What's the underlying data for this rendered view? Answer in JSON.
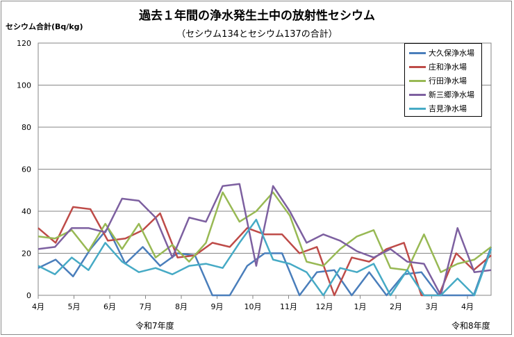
{
  "chart_data": {
    "type": "line",
    "title": "過去１年間の浄水発生土中の放射性セシウム",
    "subtitle": "（セシウム134とセシウム137の合計）",
    "ylabel": "セシウム合計(Bq/kg)",
    "ylim": [
      0,
      120
    ],
    "yticks": [
      0,
      20,
      40,
      60,
      80,
      100,
      120
    ],
    "x_tick_labels": [
      "4月",
      "5月",
      "6月",
      "7月",
      "8月",
      "9月",
      "10月",
      "11月",
      "12月",
      "1月",
      "2月",
      "3月",
      "4月"
    ],
    "x_group_labels": [
      "令和7年度",
      "令和8年度"
    ],
    "grid": true,
    "legend_position": "top-right",
    "series": [
      {
        "name": "大久保浄水場",
        "color": "#4a7ebb",
        "values": [
          13,
          17,
          9,
          22,
          32,
          15,
          23,
          14,
          20,
          19,
          0,
          0,
          14,
          20,
          20,
          0,
          11,
          12,
          0,
          11,
          0,
          10,
          11,
          0,
          0,
          0,
          23
        ]
      },
      {
        "name": "庄和浄水場",
        "color": "#be4b48",
        "values": [
          32,
          25,
          42,
          41,
          26,
          27,
          31,
          39,
          18,
          19,
          25,
          23,
          32,
          29,
          29,
          20,
          23,
          0,
          18,
          16,
          22,
          25,
          0,
          0,
          20,
          12,
          19
        ]
      },
      {
        "name": "行田浄水場",
        "color": "#98b954",
        "values": [
          28,
          27,
          31,
          21,
          34,
          22,
          34,
          18,
          24,
          16,
          25,
          49,
          35,
          40,
          49,
          38,
          16,
          14,
          22,
          28,
          31,
          13,
          12,
          29,
          11,
          15,
          17,
          23
        ]
      },
      {
        "name": "新三郷浄水場",
        "color": "#7d60a0",
        "values": [
          22,
          23,
          32,
          32,
          30,
          46,
          45,
          37,
          18,
          37,
          35,
          52,
          53,
          14,
          52,
          40,
          25,
          29,
          26,
          21,
          18,
          22,
          16,
          15,
          0,
          32,
          11,
          12
        ]
      },
      {
        "name": "吉見浄水場",
        "color": "#46aac5",
        "values": [
          14,
          10,
          18,
          12,
          25,
          16,
          11,
          13,
          10,
          14,
          15,
          13,
          25,
          36,
          17,
          15,
          11,
          0,
          13,
          11,
          15,
          0,
          12,
          0,
          0,
          8,
          0,
          22
        ]
      }
    ]
  }
}
